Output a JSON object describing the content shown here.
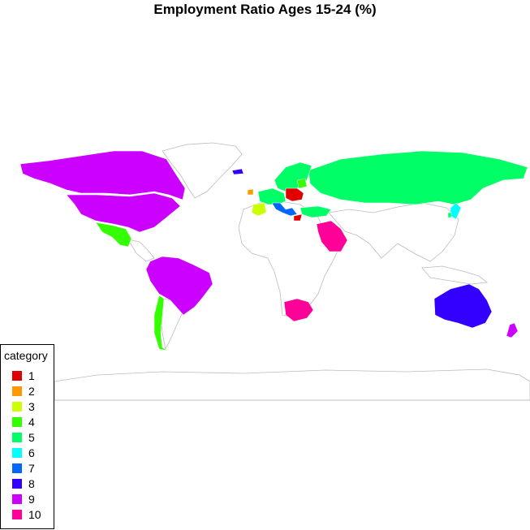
{
  "title": "Employment Ratio Ages 15-24 (%)",
  "legend": {
    "title": "category",
    "items": [
      {
        "label": "1",
        "color": "#e00000"
      },
      {
        "label": "2",
        "color": "#ff9900"
      },
      {
        "label": "3",
        "color": "#ccff00"
      },
      {
        "label": "4",
        "color": "#33ff00"
      },
      {
        "label": "5",
        "color": "#00ff66"
      },
      {
        "label": "6",
        "color": "#00ffff"
      },
      {
        "label": "7",
        "color": "#0066ff"
      },
      {
        "label": "8",
        "color": "#3300ff"
      },
      {
        "label": "9",
        "color": "#cc00ff"
      },
      {
        "label": "10",
        "color": "#ff0099"
      }
    ]
  },
  "regions": [
    {
      "name": "Canada / Alaska",
      "category": "9"
    },
    {
      "name": "United States",
      "category": "9"
    },
    {
      "name": "Mexico",
      "category": "4"
    },
    {
      "name": "Brazil / Peru / Colombia",
      "category": "9"
    },
    {
      "name": "Chile",
      "category": "4"
    },
    {
      "name": "Russia",
      "category": "5"
    },
    {
      "name": "Scandinavia / Northern Europe",
      "category": "5"
    },
    {
      "name": "Spain",
      "category": "3"
    },
    {
      "name": "Poland / Eastern Europe",
      "category": "1"
    },
    {
      "name": "Saudi Arabia",
      "category": "10"
    },
    {
      "name": "South Africa",
      "category": "10"
    },
    {
      "name": "Australia",
      "category": "8"
    },
    {
      "name": "New Zealand",
      "category": "9"
    },
    {
      "name": "Japan",
      "category": "6"
    },
    {
      "name": "Iceland",
      "category": "8"
    },
    {
      "name": "Turkey",
      "category": "5"
    }
  ]
}
